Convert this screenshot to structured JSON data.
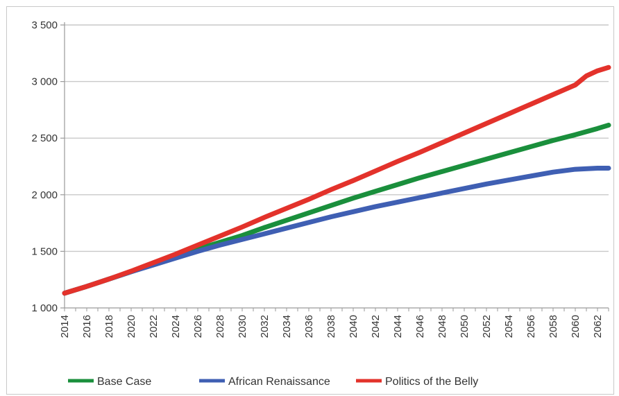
{
  "chart_data": {
    "type": "line",
    "title": "",
    "xlabel": "",
    "ylabel": "",
    "xlim": [
      2014,
      2063
    ],
    "ylim": [
      1000,
      3500
    ],
    "y_ticks": [
      {
        "value": 1000,
        "label": "1 000"
      },
      {
        "value": 1500,
        "label": "1 500"
      },
      {
        "value": 2000,
        "label": "2 000"
      },
      {
        "value": 2500,
        "label": "2 500"
      },
      {
        "value": 3000,
        "label": "3 000"
      },
      {
        "value": 3500,
        "label": "3 500"
      }
    ],
    "x_ticks": [
      "2014",
      "2016",
      "2018",
      "2020",
      "2022",
      "2024",
      "2026",
      "2028",
      "2030",
      "2032",
      "2034",
      "2036",
      "2038",
      "2040",
      "2042",
      "2044",
      "2046",
      "2048",
      "2050",
      "2052",
      "2054",
      "2056",
      "2058",
      "2060",
      "2062"
    ],
    "grid": "horizontal",
    "legend_position": "bottom",
    "series": [
      {
        "name": "Base Case",
        "color": "#1a8f3c",
        "x": [
          2014,
          2016,
          2018,
          2020,
          2022,
          2024,
          2026,
          2028,
          2030,
          2032,
          2034,
          2036,
          2038,
          2040,
          2042,
          2044,
          2046,
          2048,
          2050,
          2052,
          2054,
          2056,
          2058,
          2060,
          2062,
          2063
        ],
        "y": [
          1130,
          1190,
          1255,
          1320,
          1385,
          1455,
          1520,
          1580,
          1640,
          1710,
          1775,
          1840,
          1905,
          1970,
          2030,
          2090,
          2150,
          2205,
          2260,
          2315,
          2370,
          2425,
          2480,
          2530,
          2585,
          2615
        ]
      },
      {
        "name": "African Renaissance",
        "color": "#3f5fb3",
        "x": [
          2014,
          2016,
          2018,
          2020,
          2022,
          2024,
          2026,
          2028,
          2030,
          2032,
          2034,
          2036,
          2038,
          2040,
          2042,
          2044,
          2046,
          2048,
          2050,
          2052,
          2054,
          2056,
          2058,
          2060,
          2062,
          2063
        ],
        "y": [
          1130,
          1190,
          1255,
          1320,
          1380,
          1440,
          1500,
          1555,
          1605,
          1655,
          1705,
          1755,
          1805,
          1850,
          1895,
          1935,
          1975,
          2015,
          2055,
          2095,
          2130,
          2165,
          2200,
          2225,
          2235,
          2235
        ]
      },
      {
        "name": "Politics of the Belly",
        "color": "#e3322b",
        "x": [
          2014,
          2016,
          2018,
          2020,
          2022,
          2024,
          2026,
          2028,
          2030,
          2032,
          2034,
          2036,
          2038,
          2040,
          2042,
          2044,
          2046,
          2048,
          2050,
          2052,
          2054,
          2056,
          2058,
          2060,
          2061,
          2062,
          2063
        ],
        "y": [
          1130,
          1190,
          1255,
          1325,
          1400,
          1475,
          1555,
          1635,
          1715,
          1800,
          1880,
          1960,
          2045,
          2125,
          2210,
          2295,
          2375,
          2460,
          2545,
          2630,
          2715,
          2800,
          2885,
          2970,
          3050,
          3095,
          3125
        ]
      }
    ]
  }
}
